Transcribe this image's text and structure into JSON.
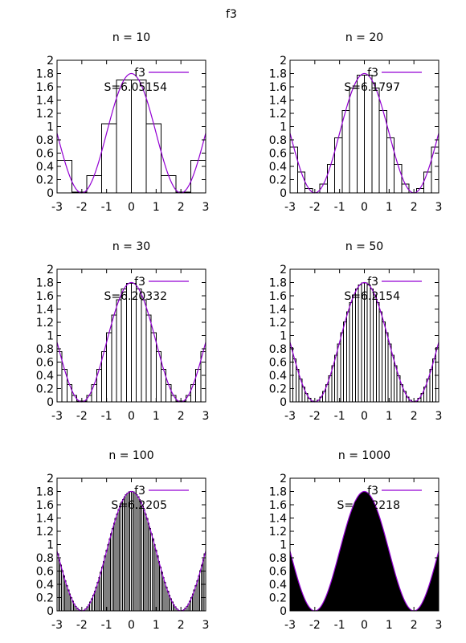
{
  "figure": {
    "title": "f3",
    "curve_color": "#9400d3",
    "bar_color_outline": "#000000"
  },
  "chart_data": [
    {
      "type": "bar",
      "title": "n = 10",
      "n": 10,
      "x_range": [
        -3,
        3
      ],
      "ylim": [
        0,
        2
      ],
      "x_ticks": [
        -3,
        -2,
        -1,
        0,
        1,
        2,
        3
      ],
      "y_ticks": [
        0,
        0.2,
        0.4,
        0.6,
        0.8,
        1,
        1.2,
        1.4,
        1.6,
        1.8,
        2
      ],
      "legend": "f3",
      "legend_position": "top-right",
      "annotation": "S=6.05154"
    },
    {
      "type": "bar",
      "title": "n = 20",
      "n": 20,
      "x_range": [
        -3,
        3
      ],
      "ylim": [
        0,
        2
      ],
      "x_ticks": [
        -3,
        -2,
        -1,
        0,
        1,
        2,
        3
      ],
      "y_ticks": [
        0,
        0.2,
        0.4,
        0.6,
        0.8,
        1,
        1.2,
        1.4,
        1.6,
        1.8,
        2
      ],
      "legend": "f3",
      "legend_position": "top-right",
      "annotation": "S=6.1797"
    },
    {
      "type": "bar",
      "title": "n = 30",
      "n": 30,
      "x_range": [
        -3,
        3
      ],
      "ylim": [
        0,
        2
      ],
      "x_ticks": [
        -3,
        -2,
        -1,
        0,
        1,
        2,
        3
      ],
      "y_ticks": [
        0,
        0.2,
        0.4,
        0.6,
        0.8,
        1,
        1.2,
        1.4,
        1.6,
        1.8,
        2
      ],
      "legend": "f3",
      "legend_position": "top-right",
      "annotation": "S=6.20332"
    },
    {
      "type": "bar",
      "title": "n = 50",
      "n": 50,
      "x_range": [
        -3,
        3
      ],
      "ylim": [
        0,
        2
      ],
      "x_ticks": [
        -3,
        -2,
        -1,
        0,
        1,
        2,
        3
      ],
      "y_ticks": [
        0,
        0.2,
        0.4,
        0.6,
        0.8,
        1,
        1.2,
        1.4,
        1.6,
        1.8,
        2
      ],
      "legend": "f3",
      "legend_position": "top-right",
      "annotation": "S=6.2154"
    },
    {
      "type": "bar",
      "title": "n = 100",
      "n": 100,
      "x_range": [
        -3,
        3
      ],
      "ylim": [
        0,
        2
      ],
      "x_ticks": [
        -3,
        -2,
        -1,
        0,
        1,
        2,
        3
      ],
      "y_ticks": [
        0,
        0.2,
        0.4,
        0.6,
        0.8,
        1,
        1.2,
        1.4,
        1.6,
        1.8,
        2
      ],
      "legend": "f3",
      "legend_position": "top-right",
      "annotation": "S=6.2205"
    },
    {
      "type": "bar",
      "title": "n = 1000",
      "n": 1000,
      "x_range": [
        -3,
        3
      ],
      "ylim": [
        0,
        2
      ],
      "x_ticks": [
        -3,
        -2,
        -1,
        0,
        1,
        2,
        3
      ],
      "y_ticks": [
        0,
        0.2,
        0.4,
        0.6,
        0.8,
        1,
        1.2,
        1.4,
        1.6,
        1.8,
        2
      ],
      "legend": "f3",
      "legend_position": "top-right",
      "annotation": "S=6.22218"
    }
  ]
}
